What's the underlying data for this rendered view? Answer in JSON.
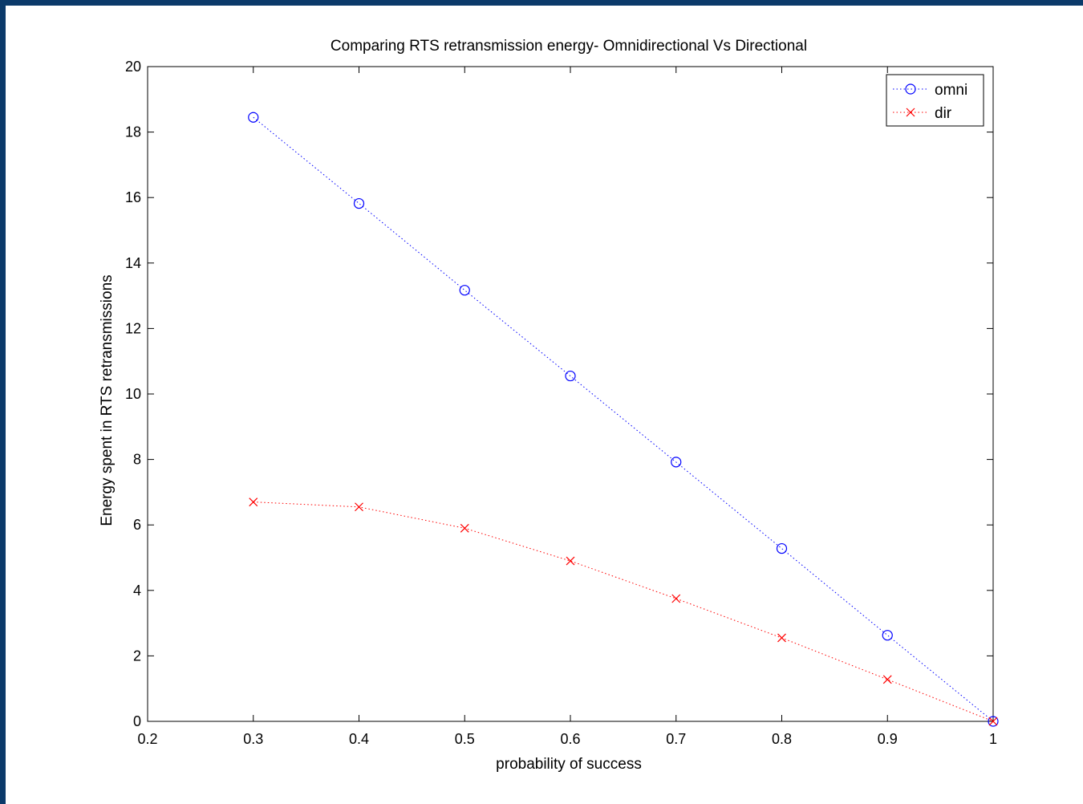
{
  "chart_data": {
    "type": "line",
    "title": "Comparing RTS retransmission energy- Omnidirectional Vs Directional",
    "xlabel": "probability of success",
    "ylabel": "Energy spent in RTS retransmissions",
    "xlim": [
      0.2,
      1
    ],
    "ylim": [
      0,
      20
    ],
    "xticks": [
      "0.2",
      "0.3",
      "0.4",
      "0.5",
      "0.6",
      "0.7",
      "0.8",
      "0.9",
      "1"
    ],
    "yticks": [
      "0",
      "2",
      "4",
      "6",
      "8",
      "10",
      "12",
      "14",
      "16",
      "18",
      "20"
    ],
    "x": [
      0.3,
      0.4,
      0.5,
      0.6,
      0.7,
      0.8,
      0.9,
      1.0
    ],
    "series": [
      {
        "name": "omni",
        "marker": "circle",
        "color": "#0000ff",
        "linestyle": "dotted",
        "values": [
          18.45,
          15.82,
          13.17,
          10.55,
          7.92,
          5.28,
          2.63,
          0
        ]
      },
      {
        "name": "dir",
        "marker": "x",
        "color": "#ff0000",
        "linestyle": "dotted",
        "values": [
          6.7,
          6.55,
          5.9,
          4.9,
          3.75,
          2.55,
          1.28,
          0
        ]
      }
    ],
    "legend": "top-right",
    "grid": false
  }
}
